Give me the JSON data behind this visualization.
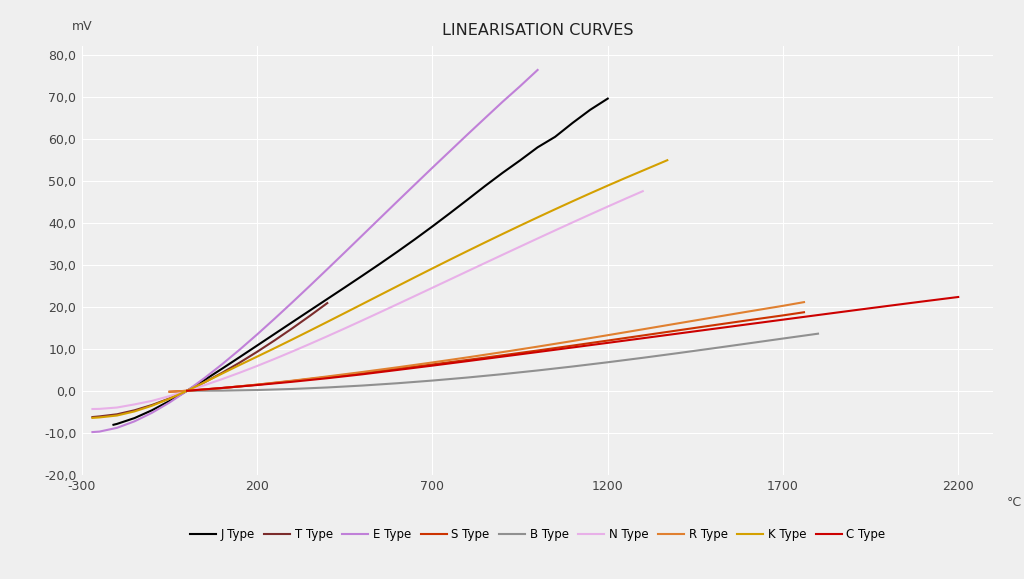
{
  "title": "LINEARISATION CURVES",
  "ylabel": "mV",
  "xlabel": "°C",
  "xlim": [
    -300,
    2300
  ],
  "ylim": [
    -20,
    82
  ],
  "xticks": [
    -300,
    200,
    700,
    1200,
    1700,
    2200
  ],
  "yticks": [
    -20.0,
    -10.0,
    0.0,
    10.0,
    20.0,
    30.0,
    40.0,
    50.0,
    60.0,
    70.0,
    80.0
  ],
  "background_color": "#efefef",
  "grid_color": "#ffffff",
  "thermocouples": {
    "J Type": {
      "color": "#000000",
      "temps": [
        -210,
        -200,
        -150,
        -100,
        -50,
        0,
        50,
        100,
        150,
        200,
        250,
        300,
        350,
        400,
        450,
        500,
        550,
        600,
        650,
        700,
        750,
        800,
        850,
        900,
        950,
        1000,
        1050,
        1100,
        1150,
        1200
      ],
      "volts": [
        -8.095,
        -7.89,
        -6.5,
        -4.633,
        -2.431,
        0.0,
        2.585,
        5.269,
        8.01,
        10.779,
        13.555,
        16.327,
        19.091,
        21.848,
        24.607,
        27.393,
        30.213,
        33.102,
        36.071,
        39.132,
        42.283,
        45.494,
        48.746,
        51.877,
        54.845,
        57.953,
        60.456,
        63.777,
        66.887,
        69.553
      ]
    },
    "T Type": {
      "color": "#7b2c2c",
      "temps": [
        -270,
        -250,
        -200,
        -150,
        -100,
        -50,
        0,
        50,
        100,
        150,
        200,
        250,
        300,
        350,
        400
      ],
      "volts": [
        -6.258,
        -6.105,
        -5.603,
        -4.648,
        -3.379,
        -1.819,
        0.0,
        2.036,
        4.279,
        6.704,
        9.288,
        12.013,
        14.862,
        17.819,
        20.872
      ]
    },
    "E Type": {
      "color": "#c080d8",
      "temps": [
        -270,
        -250,
        -200,
        -150,
        -100,
        -50,
        0,
        50,
        100,
        150,
        200,
        250,
        300,
        350,
        400,
        450,
        500,
        550,
        600,
        650,
        700,
        750,
        800,
        850,
        900,
        950,
        1000
      ],
      "volts": [
        -9.835,
        -9.719,
        -8.825,
        -7.279,
        -5.237,
        -2.787,
        0.0,
        3.048,
        6.319,
        9.789,
        13.421,
        17.181,
        21.036,
        24.964,
        28.946,
        32.96,
        37.005,
        41.053,
        45.093,
        49.109,
        53.112,
        57.06,
        61.017,
        64.909,
        68.787,
        72.503,
        76.373
      ]
    },
    "S Type": {
      "color": "#cc3300",
      "temps": [
        -50,
        0,
        100,
        200,
        300,
        400,
        500,
        600,
        700,
        800,
        900,
        1000,
        1100,
        1200,
        1300,
        1400,
        1500,
        1600,
        1700,
        1760
      ],
      "volts": [
        -0.236,
        0.0,
        0.646,
        1.441,
        2.323,
        3.259,
        4.233,
        5.239,
        6.275,
        7.345,
        8.449,
        9.587,
        10.757,
        11.951,
        13.159,
        14.373,
        15.582,
        16.777,
        17.942,
        18.693
      ]
    },
    "B Type": {
      "color": "#909090",
      "temps": [
        0,
        100,
        200,
        300,
        400,
        500,
        600,
        700,
        800,
        900,
        1000,
        1100,
        1200,
        1300,
        1400,
        1500,
        1600,
        1700,
        1800
      ],
      "volts": [
        0.0,
        0.033,
        0.178,
        0.431,
        0.787,
        1.242,
        1.792,
        2.431,
        3.154,
        3.957,
        4.834,
        5.78,
        6.786,
        7.848,
        8.956,
        10.099,
        11.263,
        12.433,
        13.591
      ]
    },
    "N Type": {
      "color": "#e8b0e8",
      "temps": [
        -270,
        -250,
        -200,
        -150,
        -100,
        -50,
        0,
        50,
        100,
        150,
        200,
        250,
        300,
        350,
        400,
        450,
        500,
        550,
        600,
        650,
        700,
        750,
        800,
        850,
        900,
        950,
        1000,
        1050,
        1100,
        1150,
        1200,
        1250,
        1300
      ],
      "volts": [
        -4.345,
        -4.313,
        -3.99,
        -3.243,
        -2.407,
        -1.269,
        0.0,
        1.34,
        2.774,
        4.302,
        5.913,
        7.597,
        9.341,
        11.136,
        12.974,
        14.846,
        16.748,
        18.672,
        20.613,
        22.566,
        24.527,
        26.491,
        28.455,
        30.417,
        32.371,
        34.315,
        36.256,
        38.179,
        40.087,
        41.976,
        43.846,
        45.694,
        47.513
      ]
    },
    "R Type": {
      "color": "#e08030",
      "temps": [
        -50,
        0,
        100,
        200,
        300,
        400,
        500,
        600,
        700,
        800,
        900,
        1000,
        1100,
        1200,
        1300,
        1400,
        1500,
        1600,
        1700,
        1760
      ],
      "volts": [
        -0.226,
        0.0,
        0.647,
        1.469,
        2.401,
        3.408,
        4.471,
        5.583,
        6.743,
        7.95,
        9.205,
        10.506,
        11.85,
        13.228,
        14.629,
        16.04,
        17.451,
        18.849,
        20.222,
        21.101
      ]
    },
    "K Type": {
      "color": "#d4a000",
      "temps": [
        -270,
        -250,
        -200,
        -150,
        -100,
        -50,
        0,
        50,
        100,
        150,
        200,
        250,
        300,
        350,
        400,
        450,
        500,
        550,
        600,
        650,
        700,
        750,
        800,
        850,
        900,
        950,
        1000,
        1050,
        1100,
        1150,
        1200,
        1250,
        1300,
        1370
      ],
      "volts": [
        -6.458,
        -6.344,
        -5.891,
        -4.913,
        -3.554,
        -1.889,
        0.0,
        2.023,
        4.096,
        6.138,
        8.138,
        10.153,
        12.209,
        14.293,
        16.397,
        18.516,
        20.644,
        22.776,
        24.905,
        27.025,
        29.129,
        31.214,
        33.275,
        35.313,
        37.326,
        39.314,
        41.276,
        43.211,
        45.119,
        46.995,
        48.838,
        50.644,
        52.41,
        54.886
      ]
    },
    "C Type": {
      "color": "#cc0000",
      "temps": [
        0,
        100,
        200,
        300,
        400,
        500,
        600,
        700,
        800,
        900,
        1000,
        1100,
        1200,
        1300,
        1400,
        1500,
        1600,
        1700,
        1800,
        1900,
        2000,
        2100,
        2200
      ],
      "volts": [
        0.0,
        0.669,
        1.37,
        2.141,
        2.986,
        3.92,
        4.952,
        5.99,
        7.057,
        8.136,
        9.22,
        10.31,
        11.406,
        12.507,
        13.613,
        14.72,
        15.826,
        16.93,
        18.03,
        19.124,
        20.207,
        21.275,
        22.324
      ]
    }
  }
}
